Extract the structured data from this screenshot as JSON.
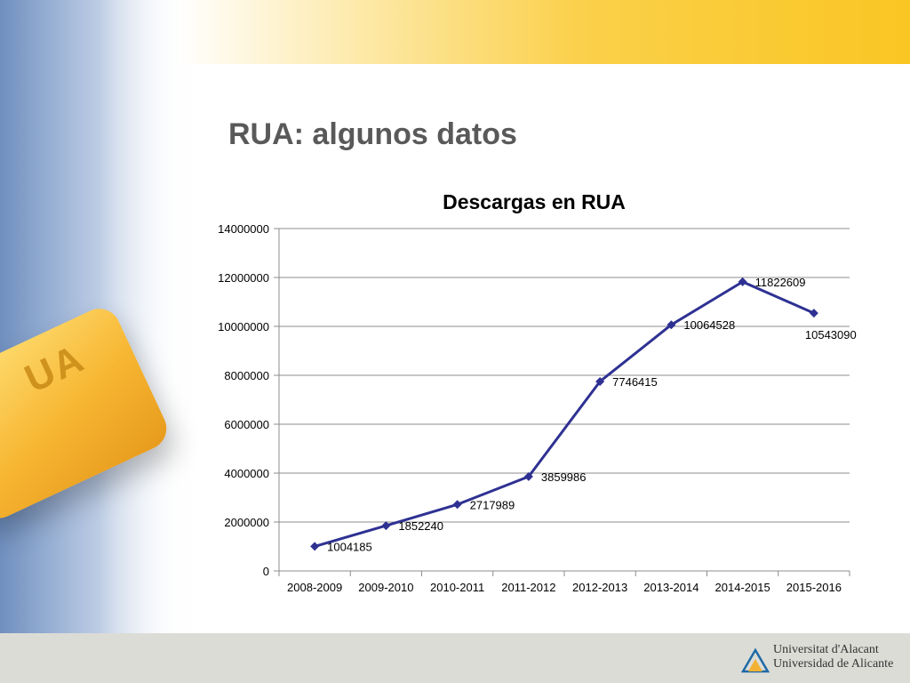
{
  "slide": {
    "title": "RUA: algunos datos",
    "decor_label": "UA"
  },
  "footer": {
    "line1": "Universitat d'Alacant",
    "line2": "Universidad de Alicante"
  },
  "chart_data": {
    "type": "line",
    "title": "Descargas en RUA",
    "xlabel": "",
    "ylabel": "",
    "categories": [
      "2008-2009",
      "2009-2010",
      "2010-2011",
      "2011-2012",
      "2012-2013",
      "2013-2014",
      "2014-2015",
      "2015-2016"
    ],
    "series": [
      {
        "values": [
          1004185,
          1852240,
          2717989,
          3859986,
          7746415,
          10064528,
          11822609,
          10543090
        ]
      }
    ],
    "data_labels": [
      "1004185",
      "1852240",
      "2717989",
      "3859986",
      "7746415",
      "10064528",
      "11822609",
      "10543090"
    ],
    "ylim": [
      0,
      14000000
    ],
    "yticks": [
      0,
      2000000,
      4000000,
      6000000,
      8000000,
      10000000,
      12000000,
      14000000
    ],
    "ytick_labels": [
      "0",
      "2000000",
      "4000000",
      "6000000",
      "8000000",
      "10000000",
      "12000000",
      "14000000"
    ],
    "grid": true,
    "legend": "none",
    "colors": {
      "line": "#2e3192",
      "grid": "#8c8c8c",
      "axis": "#8c8c8c"
    }
  }
}
